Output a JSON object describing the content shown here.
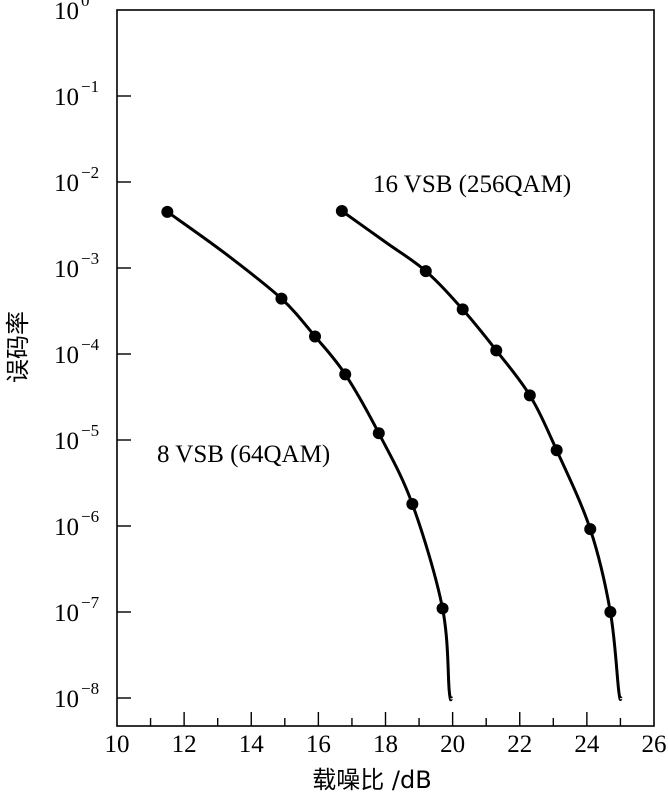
{
  "chart_data": {
    "type": "line",
    "title": "",
    "xlabel": "载噪比 /dB",
    "ylabel": "误码率",
    "xlim": [
      10,
      26
    ],
    "ylim": [
      1e-08,
      1
    ],
    "yscale": "log",
    "grid": false,
    "x_ticks": [
      "10",
      "12",
      "14",
      "16",
      "18",
      "20",
      "22",
      "24",
      "26"
    ],
    "y_ticks": [
      {
        "base": "10",
        "exp": "0",
        "value": 1
      },
      {
        "base": "10",
        "exp": "−1",
        "value": 0.1
      },
      {
        "base": "10",
        "exp": "−2",
        "value": 0.01
      },
      {
        "base": "10",
        "exp": "−3",
        "value": 0.001
      },
      {
        "base": "10",
        "exp": "−4",
        "value": 0.0001
      },
      {
        "base": "10",
        "exp": "−5",
        "value": 1e-05
      },
      {
        "base": "10",
        "exp": "−6",
        "value": 1e-06
      },
      {
        "base": "10",
        "exp": "−7",
        "value": 1e-07
      },
      {
        "base": "10",
        "exp": "−8",
        "value": 1e-08
      }
    ],
    "series": [
      {
        "name": "8 VSB (64QAM)",
        "points": [
          [
            11.5,
            0.0045
          ],
          [
            14.9,
            0.00044
          ],
          [
            15.9,
            0.00016
          ],
          [
            16.8,
            5.8e-05
          ],
          [
            17.8,
            1.2e-05
          ],
          [
            18.8,
            1.8e-06
          ],
          [
            19.7,
            1.1e-07
          ]
        ],
        "curve": [
          [
            11.5,
            0.0045
          ],
          [
            13.2,
            0.0015
          ],
          [
            14.9,
            0.00044
          ],
          [
            15.9,
            0.00016
          ],
          [
            16.8,
            5.8e-05
          ],
          [
            17.8,
            1.2e-05
          ],
          [
            18.8,
            1.8e-06
          ],
          [
            19.7,
            1.1e-07
          ],
          [
            19.9,
            1.2e-08
          ],
          [
            19.97,
            1e-08
          ]
        ]
      },
      {
        "name": "16 VSB (256QAM)",
        "points": [
          [
            16.7,
            0.0046
          ],
          [
            19.2,
            0.00092
          ],
          [
            20.3,
            0.00033
          ],
          [
            21.3,
            0.00011
          ],
          [
            22.3,
            3.3e-05
          ],
          [
            23.1,
            7.6e-06
          ],
          [
            24.1,
            9.2e-07
          ],
          [
            24.7,
            1e-07
          ]
        ],
        "curve": [
          [
            16.7,
            0.0046
          ],
          [
            18.0,
            0.002
          ],
          [
            19.2,
            0.00092
          ],
          [
            20.3,
            0.00033
          ],
          [
            21.3,
            0.00011
          ],
          [
            22.3,
            3.3e-05
          ],
          [
            23.1,
            7.6e-06
          ],
          [
            24.1,
            9.2e-07
          ],
          [
            24.7,
            1e-07
          ],
          [
            24.95,
            1.2e-08
          ],
          [
            25.02,
            1e-08
          ]
        ]
      }
    ],
    "annotations": [
      {
        "text": "16 VSB (256QAM)",
        "series": 1
      },
      {
        "text": "8 VSB (64QAM)",
        "series": 0
      }
    ]
  }
}
